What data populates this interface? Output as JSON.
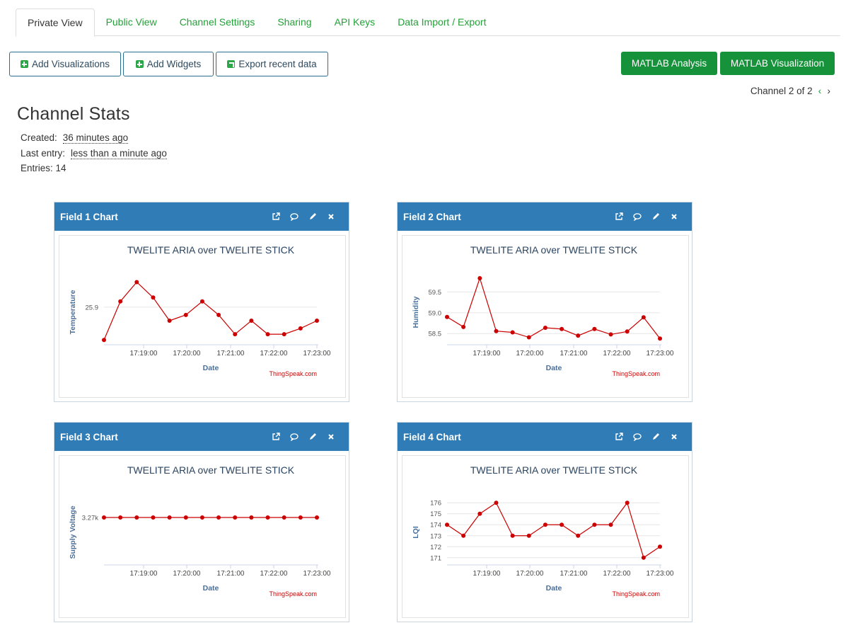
{
  "tabs": [
    {
      "label": "Private View",
      "active": true
    },
    {
      "label": "Public View",
      "active": false
    },
    {
      "label": "Channel Settings",
      "active": false
    },
    {
      "label": "Sharing",
      "active": false
    },
    {
      "label": "API Keys",
      "active": false
    },
    {
      "label": "Data Import / Export",
      "active": false
    }
  ],
  "toolbar": {
    "add_visualizations": "Add Visualizations",
    "add_widgets": "Add Widgets",
    "export_recent": "Export recent data",
    "matlab_analysis": "MATLAB Analysis",
    "matlab_visualization": "MATLAB Visualization"
  },
  "pager": {
    "label": "Channel 2 of 2",
    "prev": "‹",
    "next": "›"
  },
  "stats": {
    "title": "Channel Stats",
    "created_label": "Created:",
    "created_value": "36 minutes ago",
    "last_entry_label": "Last entry:",
    "last_entry_value": "less than a minute ago",
    "entries": "Entries: 14"
  },
  "colors": {
    "accent_green": "#16923a",
    "tab_green": "#23a138",
    "panel_header": "#2f7cb6",
    "series_red": "#cc0000",
    "axis_label_blue": "#4a6f99"
  },
  "widgets": [
    {
      "title": "Field 1 Chart"
    },
    {
      "title": "Field 2 Chart"
    },
    {
      "title": "Field 3 Chart"
    },
    {
      "title": "Field 4 Chart"
    }
  ],
  "chart_data": [
    {
      "type": "line",
      "title": "TWELITE ARIA over TWELITE STICK",
      "xlabel": "Date",
      "ylabel": "Temperature",
      "credit": "ThingSpeak.com",
      "x_ticks": [
        "17:19:00",
        "17:20:00",
        "17:21:00",
        "17:22:00",
        "17:23:00"
      ],
      "y_ticks": [
        {
          "value": 25.9,
          "label": "25.9"
        }
      ],
      "ylim": [
        25.72,
        26.05
      ],
      "series": [
        {
          "values": [
            25.73,
            25.93,
            26.03,
            25.95,
            25.83,
            25.86,
            25.93,
            25.86,
            25.76,
            25.83,
            25.76,
            25.76,
            25.79,
            25.83
          ]
        }
      ]
    },
    {
      "type": "line",
      "title": "TWELITE ARIA over TWELITE STICK",
      "xlabel": "Date",
      "ylabel": "Humidity",
      "credit": "ThingSpeak.com",
      "x_ticks": [
        "17:19:00",
        "17:20:00",
        "17:21:00",
        "17:22:00",
        "17:23:00"
      ],
      "y_ticks": [
        {
          "value": 59.5,
          "label": "59.5"
        },
        {
          "value": 59.0,
          "label": "59.0"
        },
        {
          "value": 58.5,
          "label": "58.5"
        }
      ],
      "ylim": [
        58.3,
        59.83
      ],
      "series": [
        {
          "values": [
            58.9,
            58.66,
            59.83,
            58.56,
            58.53,
            58.41,
            58.64,
            58.61,
            58.45,
            58.61,
            58.48,
            58.55,
            58.89,
            58.38
          ]
        }
      ]
    },
    {
      "type": "line",
      "title": "TWELITE ARIA over TWELITE STICK",
      "xlabel": "Date",
      "ylabel": "Supply Voltage",
      "credit": "ThingSpeak.com",
      "x_ticks": [
        "17:19:00",
        "17:20:00",
        "17:21:00",
        "17:22:00",
        "17:23:00"
      ],
      "y_ticks": [
        {
          "value": 3270,
          "label": "3.27k"
        }
      ],
      "ylim": [
        3200,
        3300
      ],
      "series": [
        {
          "values": [
            3270,
            3270,
            3270,
            3270,
            3270,
            3270,
            3270,
            3270,
            3270,
            3270,
            3270,
            3270,
            3270,
            3270
          ]
        }
      ]
    },
    {
      "type": "line",
      "title": "TWELITE ARIA over TWELITE STICK",
      "xlabel": "Date",
      "ylabel": "LQI",
      "credit": "ThingSpeak.com",
      "x_ticks": [
        "17:19:00",
        "17:20:00",
        "17:21:00",
        "17:22:00",
        "17:23:00"
      ],
      "y_ticks": [
        {
          "value": 176,
          "label": "176"
        },
        {
          "value": 175,
          "label": "175"
        },
        {
          "value": 174,
          "label": "174"
        },
        {
          "value": 173,
          "label": "173"
        },
        {
          "value": 172,
          "label": "172"
        },
        {
          "value": 171,
          "label": "171"
        }
      ],
      "ylim": [
        170.6,
        176.4
      ],
      "series": [
        {
          "values": [
            174,
            173,
            175,
            176,
            173,
            173,
            174,
            174,
            173,
            174,
            174,
            176,
            171,
            172
          ]
        }
      ]
    }
  ]
}
